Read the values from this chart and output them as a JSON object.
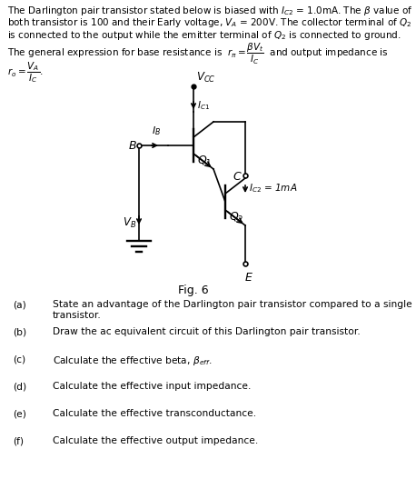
{
  "bg_color": "#ffffff",
  "text_color": "#000000",
  "fig_caption": "Fig. 6",
  "questions": [
    [
      "(a)",
      "State an advantage of the Darlington pair transistor compared to a single",
      "transistor."
    ],
    [
      "(b)",
      "Draw the ac equivalent circuit of this Darlington pair transistor.",
      ""
    ],
    [
      "(c)",
      "Calculate the effective beta, $\\beta_{eff}$.",
      ""
    ],
    [
      "(d)",
      "Calculate the effective input impedance.",
      ""
    ],
    [
      "(e)",
      "Calculate the effective transconductance.",
      ""
    ],
    [
      "(f)",
      "Calculate the effective output impedance.",
      ""
    ]
  ]
}
